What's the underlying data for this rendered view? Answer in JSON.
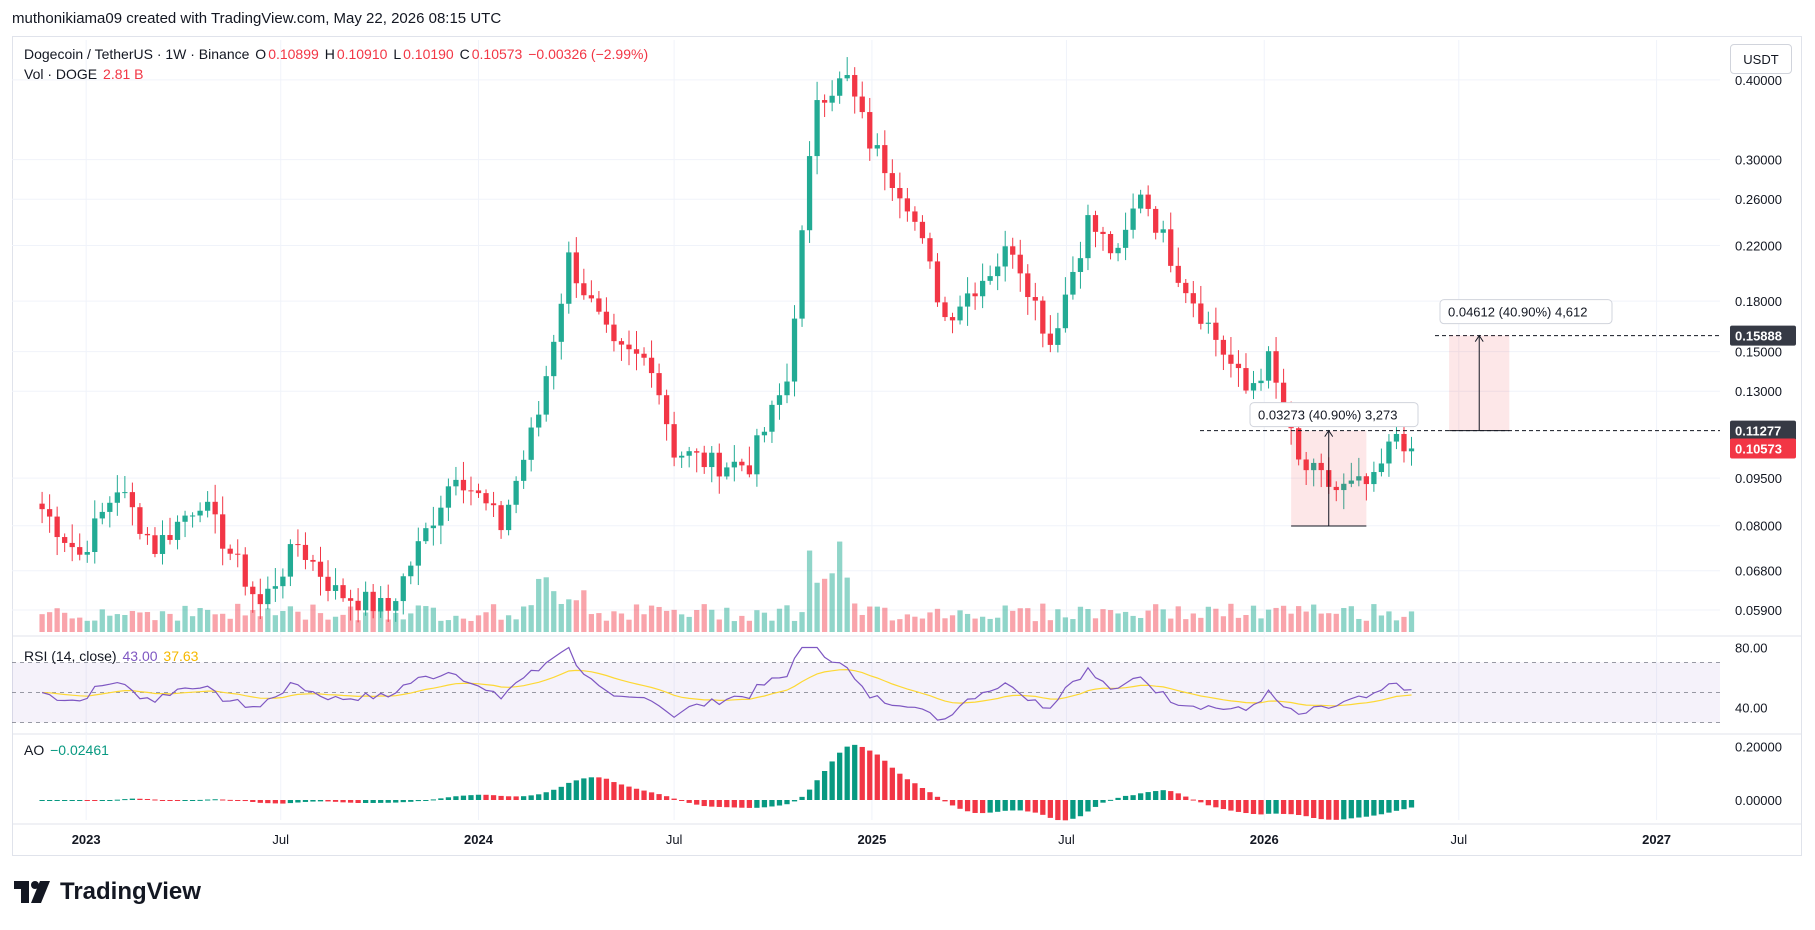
{
  "header": {
    "text": "muthonikiama09 created with TradingView.com, May 22, 2026 08:15 UTC"
  },
  "unit": "USDT",
  "legend": {
    "symbol": "Dogecoin / TetherUS · 1W · Binance",
    "o_label": "O",
    "o": "0.10899",
    "h_label": "H",
    "h": "0.10910",
    "l_label": "L",
    "l": "0.10190",
    "c_label": "C",
    "c": "0.10573",
    "change": "−0.00326 (−2.99%)",
    "vol_label": "Vol · DOGE",
    "vol": "2.81 B"
  },
  "rsi_legend": {
    "label": "RSI (14, close)",
    "rsi": "43.00",
    "ma": "37.63"
  },
  "ao_legend": {
    "label": "AO",
    "value": "−0.02461"
  },
  "measure_labels": {
    "box1": "0.03273 (40.90%) 3,273",
    "box2": "0.04612 (40.90%) 4,612"
  },
  "brand": "TradingView",
  "colors": {
    "up": "#22ab94",
    "down": "#f23645",
    "rsi": "#7e57c2",
    "rsi_ma": "#fdd835",
    "ao_up": "#089981",
    "ao_down": "#f23645",
    "price_tag": "#f23645",
    "level_tag": "#363a45"
  },
  "chart_data": [
    {
      "type": "candlestick",
      "title": "Dogecoin / TetherUS · 1W · Binance",
      "y_scale": "log",
      "y_ticks": [
        0.059,
        0.068,
        0.08,
        0.095,
        0.13,
        0.15,
        0.18,
        0.22,
        0.26,
        0.3,
        0.4
      ],
      "y_tick_labels": [
        "0.05900",
        "0.06800",
        "0.08000",
        "0.09500",
        "0.13000",
        "0.15000",
        "0.18000",
        "0.22000",
        "0.26000",
        "0.30000",
        "0.40000"
      ],
      "x_tick_labels": [
        "2023",
        "Jul",
        "2024",
        "Jul",
        "2025",
        "Jul",
        "2026",
        "Jul",
        "2027"
      ],
      "price_tags": [
        {
          "label": "0.15888",
          "value": 0.15888,
          "style": "level"
        },
        {
          "label": "0.11277",
          "value": 0.11277,
          "style": "level"
        },
        {
          "label": "0.10573",
          "value": 0.10573,
          "style": "last"
        }
      ],
      "anchors": [
        {
          "t": "2022-11-21",
          "p": 0.085
        },
        {
          "t": "2022-12-26",
          "p": 0.072
        },
        {
          "t": "2023-01-30",
          "p": 0.092
        },
        {
          "t": "2023-03-06",
          "p": 0.074
        },
        {
          "t": "2023-04-17",
          "p": 0.088
        },
        {
          "t": "2023-06-12",
          "p": 0.06
        },
        {
          "t": "2023-07-17",
          "p": 0.075
        },
        {
          "t": "2023-08-21",
          "p": 0.063
        },
        {
          "t": "2023-10-09",
          "p": 0.059
        },
        {
          "t": "2023-12-11",
          "p": 0.098
        },
        {
          "t": "2024-01-22",
          "p": 0.08
        },
        {
          "t": "2024-02-26",
          "p": 0.12
        },
        {
          "t": "2024-03-25",
          "p": 0.21
        },
        {
          "t": "2024-05-06",
          "p": 0.15
        },
        {
          "t": "2024-06-10",
          "p": 0.145
        },
        {
          "t": "2024-07-01",
          "p": 0.105
        },
        {
          "t": "2024-08-05",
          "p": 0.1
        },
        {
          "t": "2024-09-09",
          "p": 0.1
        },
        {
          "t": "2024-10-14",
          "p": 0.135
        },
        {
          "t": "2024-11-11",
          "p": 0.38
        },
        {
          "t": "2024-12-09",
          "p": 0.4
        },
        {
          "t": "2024-12-30",
          "p": 0.32
        },
        {
          "t": "2025-02-03",
          "p": 0.26
        },
        {
          "t": "2025-03-10",
          "p": 0.17
        },
        {
          "t": "2025-05-12",
          "p": 0.22
        },
        {
          "t": "2025-06-16",
          "p": 0.155
        },
        {
          "t": "2025-07-21",
          "p": 0.24
        },
        {
          "t": "2025-08-18",
          "p": 0.21
        },
        {
          "t": "2025-09-08",
          "p": 0.27
        },
        {
          "t": "2025-10-13",
          "p": 0.2
        },
        {
          "t": "2025-11-10",
          "p": 0.165
        },
        {
          "t": "2025-12-15",
          "p": 0.13
        },
        {
          "t": "2026-01-05",
          "p": 0.145
        },
        {
          "t": "2026-02-02",
          "p": 0.1
        },
        {
          "t": "2026-03-09",
          "p": 0.091
        },
        {
          "t": "2026-04-13",
          "p": 0.093
        },
        {
          "t": "2026-05-04",
          "p": 0.112
        },
        {
          "t": "2026-05-18",
          "p": 0.1057
        }
      ],
      "range_start": "2022-10-24",
      "range_end": "2027-03-01"
    },
    {
      "type": "line",
      "title": "RSI (14, close)",
      "y_ticks": [
        40,
        80
      ],
      "y_tick_labels": [
        "40.00",
        "80.00"
      ],
      "bands": [
        30,
        50,
        70
      ],
      "series": [
        {
          "name": "RSI",
          "last": 43.0
        },
        {
          "name": "RSI-based MA",
          "last": 37.63
        }
      ]
    },
    {
      "type": "bar",
      "title": "AO",
      "y_ticks": [
        0,
        0.2
      ],
      "y_tick_labels": [
        "0.00000",
        "0.20000"
      ],
      "last": -0.02461
    }
  ]
}
